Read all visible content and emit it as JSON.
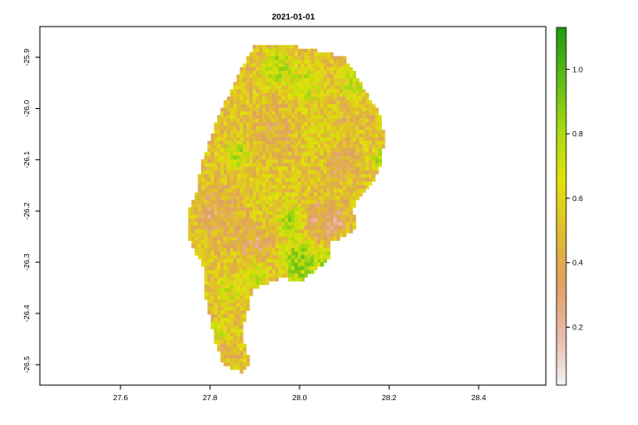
{
  "chart_data": {
    "type": "heatmap",
    "title": "2021-01-01",
    "xlabel": "",
    "ylabel": "",
    "xlim": [
      27.42,
      28.55
    ],
    "ylim": [
      -26.54,
      -25.84
    ],
    "x_ticks": [
      27.6,
      27.8,
      28.0,
      28.2,
      28.4
    ],
    "x_tick_labels": [
      "27.6",
      "27.8",
      "28.0",
      "28.2",
      "28.4"
    ],
    "y_ticks": [
      -25.9,
      -26.0,
      -26.1,
      -26.2,
      -26.3,
      -26.4,
      -26.5
    ],
    "y_tick_labels": [
      "-25.9",
      "-26.0",
      "-26.1",
      "-26.2",
      "-26.3",
      "-26.4",
      "-26.5"
    ],
    "grid": false,
    "legend": "right",
    "colorbar": {
      "min": 0.02,
      "max": 1.13,
      "ticks": [
        0.2,
        0.4,
        0.6,
        0.8,
        1.0
      ],
      "tick_labels": [
        "0.2",
        "0.4",
        "0.6",
        "0.8",
        "1.0"
      ],
      "colors": [
        "#f2f2f2",
        "#e8b9a9",
        "#e0a062",
        "#e0bc2e",
        "#e1e10a",
        "#a8d812",
        "#5cbc16",
        "#1f9a10"
      ]
    },
    "region_outline_lonlat": [
      [
        27.9,
        -25.875
      ],
      [
        27.99,
        -25.878
      ],
      [
        28.06,
        -25.89
      ],
      [
        28.1,
        -25.9
      ],
      [
        28.13,
        -25.94
      ],
      [
        28.15,
        -25.97
      ],
      [
        28.18,
        -26.01
      ],
      [
        28.19,
        -26.06
      ],
      [
        28.18,
        -26.11
      ],
      [
        28.16,
        -26.15
      ],
      [
        28.13,
        -26.18
      ],
      [
        28.12,
        -26.2
      ],
      [
        28.13,
        -26.23
      ],
      [
        28.1,
        -26.25
      ],
      [
        28.07,
        -26.26
      ],
      [
        28.07,
        -26.29
      ],
      [
        28.03,
        -26.32
      ],
      [
        28.0,
        -26.34
      ],
      [
        27.96,
        -26.33
      ],
      [
        27.93,
        -26.34
      ],
      [
        27.9,
        -26.35
      ],
      [
        27.89,
        -26.37
      ],
      [
        27.88,
        -26.41
      ],
      [
        27.87,
        -26.44
      ],
      [
        27.88,
        -26.47
      ],
      [
        27.89,
        -26.5
      ],
      [
        27.87,
        -26.515
      ],
      [
        27.83,
        -26.5
      ],
      [
        27.81,
        -26.45
      ],
      [
        27.8,
        -26.41
      ],
      [
        27.79,
        -26.37
      ],
      [
        27.79,
        -26.33
      ],
      [
        27.78,
        -26.3
      ],
      [
        27.76,
        -26.27
      ],
      [
        27.75,
        -26.24
      ],
      [
        27.75,
        -26.2
      ],
      [
        27.77,
        -26.16
      ],
      [
        27.78,
        -26.11
      ],
      [
        27.8,
        -26.06
      ],
      [
        27.82,
        -26.01
      ],
      [
        27.85,
        -25.96
      ],
      [
        27.87,
        -25.92
      ]
    ],
    "patches_lonlat_value": [
      [
        27.95,
        -25.92,
        0.88,
        0.018
      ],
      [
        28.02,
        -25.95,
        0.8,
        0.02
      ],
      [
        28.12,
        -25.95,
        0.82,
        0.015
      ],
      [
        27.86,
        -26.09,
        0.84,
        0.014
      ],
      [
        28.18,
        -26.1,
        0.86,
        0.012
      ],
      [
        27.98,
        -26.22,
        0.92,
        0.015
      ],
      [
        28.0,
        -26.3,
        0.95,
        0.022
      ],
      [
        28.06,
        -26.3,
        0.88,
        0.015
      ],
      [
        27.9,
        -26.32,
        0.8,
        0.015
      ],
      [
        27.84,
        -26.36,
        0.76,
        0.014
      ],
      [
        27.82,
        -26.44,
        0.78,
        0.012
      ],
      [
        27.95,
        -26.05,
        0.38,
        0.025
      ],
      [
        28.09,
        -26.1,
        0.3,
        0.02
      ],
      [
        27.82,
        -26.2,
        0.36,
        0.025
      ],
      [
        28.05,
        -26.22,
        0.28,
        0.02
      ],
      [
        27.9,
        -26.26,
        0.3,
        0.02
      ],
      [
        27.83,
        -26.47,
        0.4,
        0.015
      ],
      [
        28.1,
        -26.02,
        0.4,
        0.015
      ],
      [
        28.08,
        -26.22,
        0.14,
        0.01
      ],
      [
        27.8,
        -26.21,
        0.18,
        0.008
      ],
      [
        27.95,
        -26.18,
        0.6,
        0.03
      ],
      [
        28.05,
        -26.05,
        0.62,
        0.03
      ],
      [
        27.88,
        -26.4,
        0.55,
        0.02
      ]
    ]
  }
}
